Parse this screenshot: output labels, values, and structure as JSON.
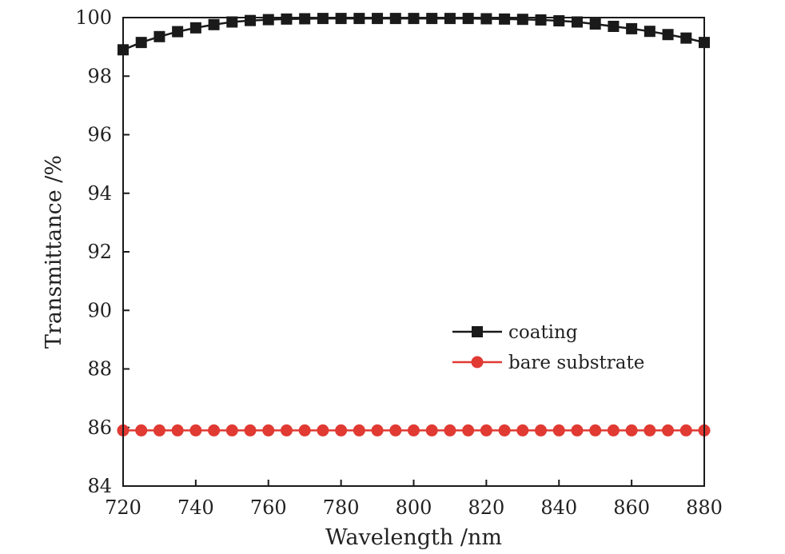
{
  "chart_data": {
    "type": "line",
    "title": "",
    "xlabel": "Wavelength /nm",
    "ylabel": "Transmittance /%",
    "xlim": [
      720,
      880
    ],
    "ylim": [
      84,
      100
    ],
    "xticks": [
      "720",
      "740",
      "760",
      "780",
      "800",
      "820",
      "840",
      "860",
      "880"
    ],
    "yticks": [
      "84",
      "86",
      "88",
      "90",
      "92",
      "94",
      "96",
      "98",
      "100"
    ],
    "grid": false,
    "legend_position": "center-right",
    "x": [
      720,
      725,
      730,
      735,
      740,
      745,
      750,
      755,
      760,
      765,
      770,
      775,
      780,
      785,
      790,
      795,
      800,
      805,
      810,
      815,
      820,
      825,
      830,
      835,
      840,
      845,
      850,
      855,
      860,
      865,
      870,
      875,
      880
    ],
    "series": [
      {
        "name": "coating",
        "color": "#1a1a1a",
        "marker": "square",
        "values": [
          98.9,
          99.15,
          99.35,
          99.52,
          99.65,
          99.76,
          99.85,
          99.9,
          99.93,
          99.95,
          99.96,
          99.97,
          99.97,
          99.97,
          99.97,
          99.97,
          99.97,
          99.97,
          99.97,
          99.97,
          99.96,
          99.95,
          99.94,
          99.92,
          99.89,
          99.85,
          99.78,
          99.7,
          99.62,
          99.53,
          99.42,
          99.3,
          99.15
        ]
      },
      {
        "name": "bare substrate",
        "color": "#e03a33",
        "marker": "circle",
        "values": [
          85.9,
          85.9,
          85.9,
          85.9,
          85.9,
          85.9,
          85.9,
          85.9,
          85.9,
          85.9,
          85.9,
          85.9,
          85.9,
          85.9,
          85.9,
          85.9,
          85.9,
          85.9,
          85.9,
          85.9,
          85.9,
          85.9,
          85.9,
          85.9,
          85.9,
          85.9,
          85.9,
          85.9,
          85.9,
          85.9,
          85.9,
          85.9,
          85.9
        ]
      }
    ]
  }
}
